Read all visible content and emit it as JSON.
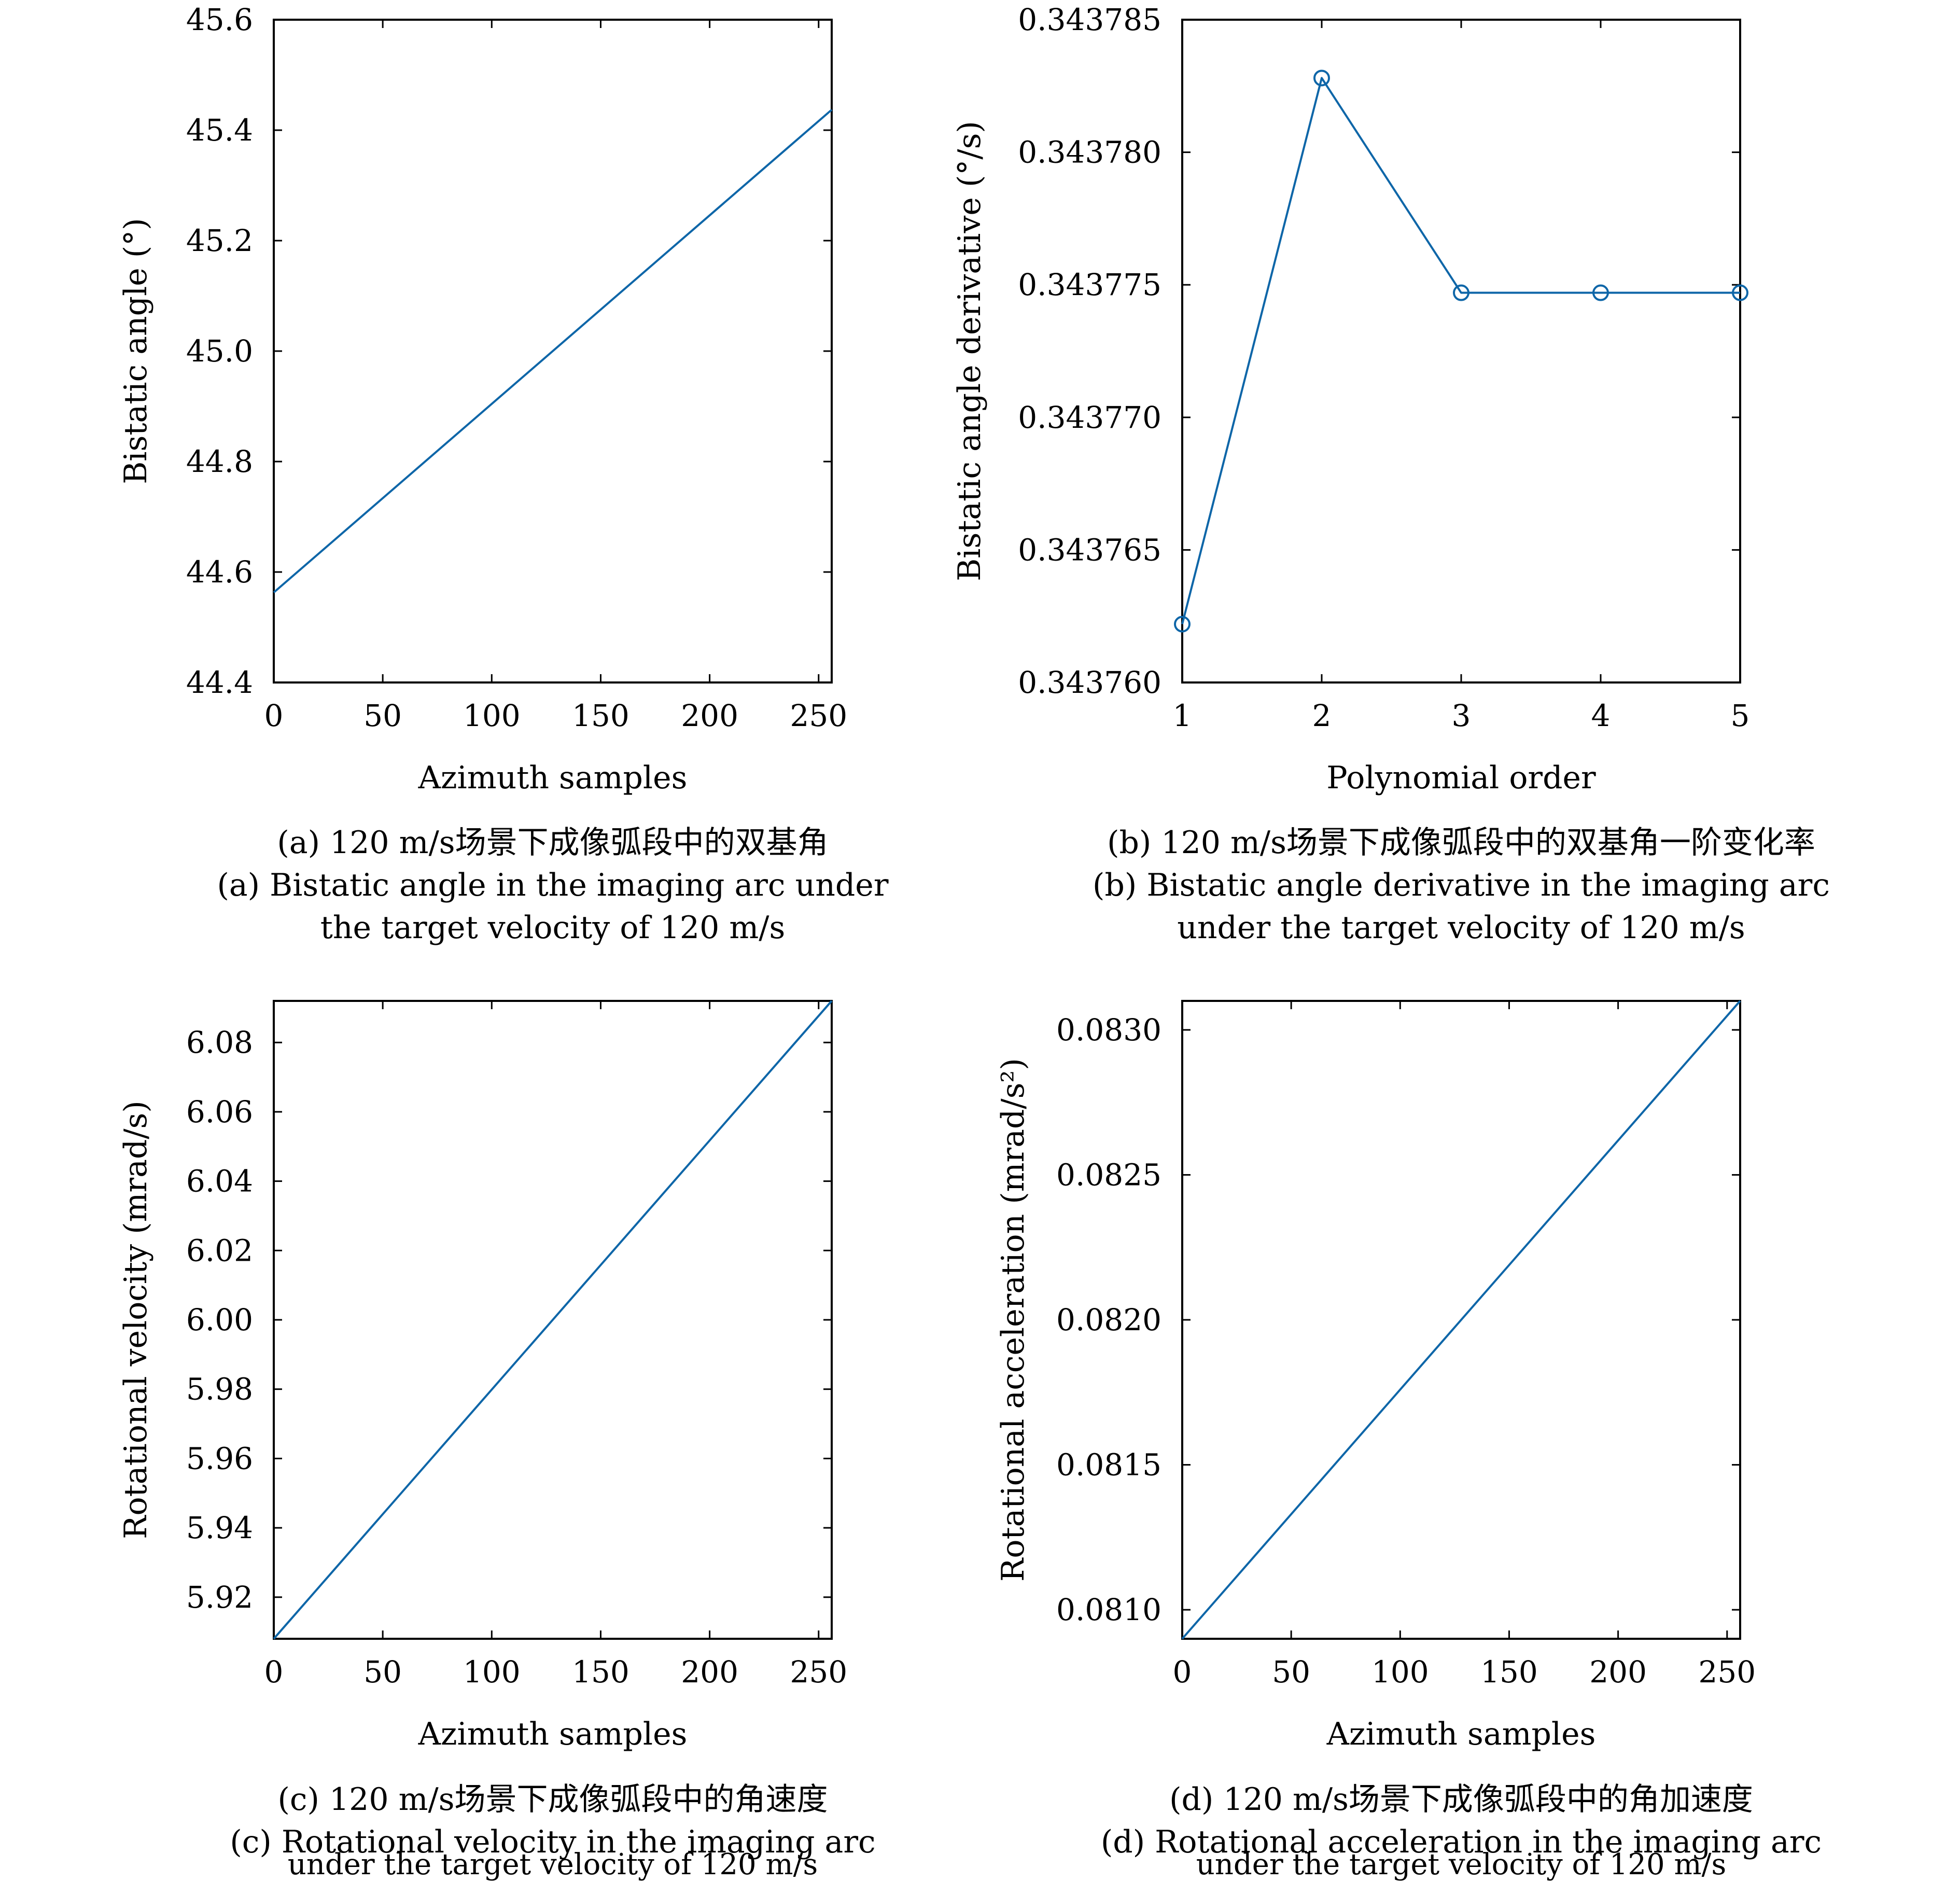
{
  "colors": {
    "series": "#0e66a8",
    "axis": "#000000",
    "background": "#ffffff"
  },
  "panels": [
    {
      "chart_data": {
        "type": "line",
        "xlabel": "Azimuth samples",
        "ylabel": "Bistatic angle (°)",
        "xlim": [
          0,
          256
        ],
        "ylim": [
          44.4,
          45.6
        ],
        "xticks": [
          0,
          50,
          100,
          150,
          200,
          250
        ],
        "yticks": [
          44.4,
          44.6,
          44.8,
          45.0,
          45.2,
          45.4,
          45.6
        ],
        "ytick_decimals": 1,
        "markers": false,
        "grid": false,
        "series": [
          {
            "x": [
              0,
              256
            ],
            "y": [
              44.563,
              45.437
            ]
          }
        ]
      },
      "caption": {
        "zh": "(a) 120 m/s场景下成像弧段中的双基角",
        "en1": "(a) Bistatic angle in the imaging arc under",
        "en2": "the target velocity of 120 m/s"
      }
    },
    {
      "chart_data": {
        "type": "line",
        "xlabel": "Polynomial order",
        "ylabel": "Bistatic angle derivative (°/s)",
        "xlim": [
          1,
          5
        ],
        "ylim": [
          0.34376,
          0.343785
        ],
        "xticks": [
          1,
          2,
          3,
          4,
          5
        ],
        "yticks": [
          0.34376,
          0.343765,
          0.34377,
          0.343775,
          0.34378,
          0.343785
        ],
        "ytick_decimals": 6,
        "markers": true,
        "grid": false,
        "series": [
          {
            "x": [
              1,
              2,
              3,
              4,
              5
            ],
            "y": [
              0.3437622,
              0.3437828,
              0.3437747,
              0.3437747,
              0.3437747
            ]
          }
        ]
      },
      "caption": {
        "zh": "(b) 120 m/s场景下成像弧段中的双基角一阶变化率",
        "en1": "(b) Bistatic angle derivative in the imaging arc",
        "en2": "under the target velocity of 120 m/s"
      }
    },
    {
      "chart_data": {
        "type": "line",
        "xlabel": "Azimuth samples",
        "ylabel": "Rotational velocity (mrad/s)",
        "xlim": [
          0,
          256
        ],
        "ylim": [
          5.908,
          6.092
        ],
        "xticks": [
          0,
          50,
          100,
          150,
          200,
          250
        ],
        "yticks": [
          5.92,
          5.94,
          5.96,
          5.98,
          6.0,
          6.02,
          6.04,
          6.06,
          6.08
        ],
        "ytick_decimals": 2,
        "markers": false,
        "grid": false,
        "series": [
          {
            "x": [
              0,
              256
            ],
            "y": [
              5.908,
              6.092
            ]
          }
        ]
      },
      "caption": {
        "zh": "(c) 120 m/s场景下成像弧段中的角速度",
        "en1": "(c) Rotational velocity in the imaging arc",
        "en2": "under the target velocity of 120 m/s"
      }
    },
    {
      "chart_data": {
        "type": "line",
        "xlabel": "Azimuth samples",
        "ylabel": "Rotational acceleration (mrad/s²)",
        "xlim": [
          0,
          256
        ],
        "ylim": [
          0.0809,
          0.0831
        ],
        "xticks": [
          0,
          50,
          100,
          150,
          200,
          250
        ],
        "yticks": [
          0.081,
          0.0815,
          0.082,
          0.0825,
          0.083
        ],
        "ytick_decimals": 4,
        "markers": false,
        "grid": false,
        "series": [
          {
            "x": [
              0,
              256
            ],
            "y": [
              0.0809,
              0.0831
            ]
          }
        ]
      },
      "caption": {
        "zh": "(d) 120 m/s场景下成像弧段中的角加速度",
        "en1": "(d) Rotational acceleration in the imaging arc",
        "en2": "under the target velocity of 120 m/s"
      }
    }
  ]
}
